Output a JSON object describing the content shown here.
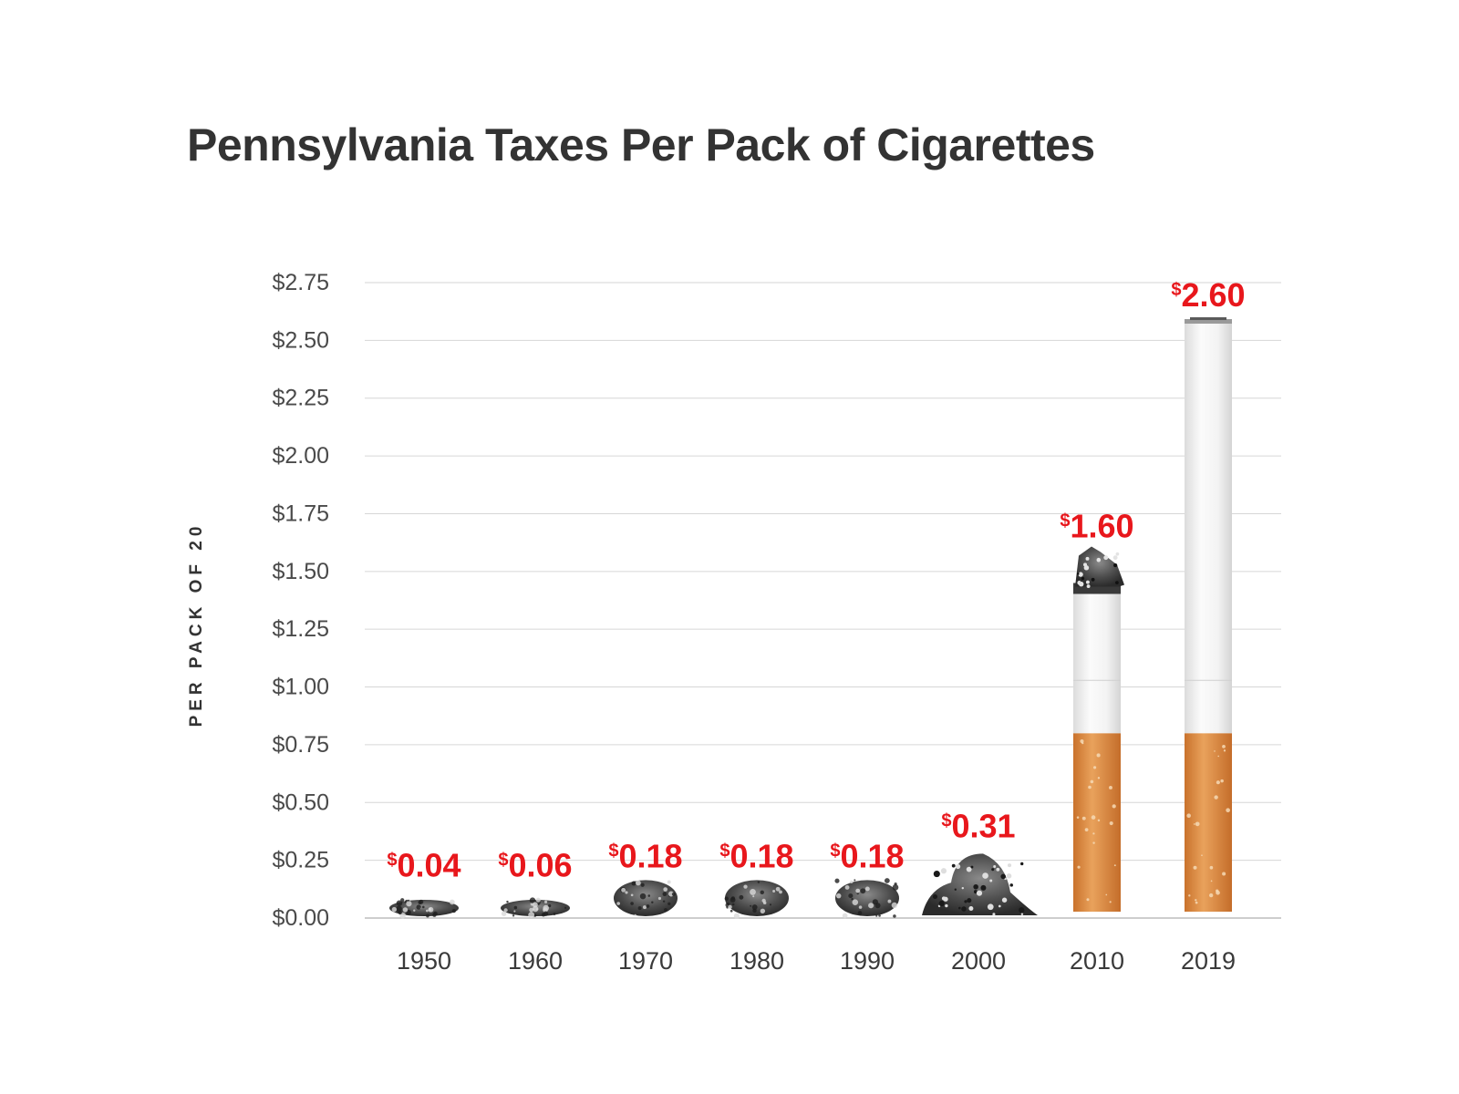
{
  "chart_data": {
    "type": "bar",
    "title": "Pennsylvania Taxes Per Pack of Cigarettes",
    "xlabel": "",
    "ylabel": "PER PACK OF 20",
    "categories": [
      "1950",
      "1960",
      "1970",
      "1980",
      "1990",
      "2000",
      "2010",
      "2019"
    ],
    "values": [
      0.04,
      0.06,
      0.18,
      0.18,
      0.18,
      0.31,
      1.6,
      2.6
    ],
    "value_labels": [
      {
        "currency": "$",
        "amount": "0.04"
      },
      {
        "currency": "$",
        "amount": "0.06"
      },
      {
        "currency": "$",
        "amount": "0.18"
      },
      {
        "currency": "$",
        "amount": "0.18"
      },
      {
        "currency": "$",
        "amount": "0.18"
      },
      {
        "currency": "$",
        "amount": "0.31"
      },
      {
        "currency": "$",
        "amount": "1.60"
      },
      {
        "currency": "$",
        "amount": "2.60"
      }
    ],
    "ylim": [
      0,
      2.75
    ],
    "yticks": [
      0,
      0.25,
      0.5,
      0.75,
      1.0,
      1.25,
      1.5,
      1.75,
      2.0,
      2.25,
      2.5,
      2.75
    ],
    "ytick_labels": [
      "$0.00",
      "$0.25",
      "$0.50",
      "$0.75",
      "$1.00",
      "$1.25",
      "$1.50",
      "$1.75",
      "$2.00",
      "$2.25",
      "$2.50",
      "$2.75"
    ],
    "grid": true,
    "bar_style": "cigarette",
    "colors": {
      "value_label": "#e8171c",
      "text": "#333333",
      "gridline": "#d6d6d6",
      "filter": "#d9843d",
      "paper": "#f3f3f3",
      "ash": "#4a4a4a"
    }
  }
}
